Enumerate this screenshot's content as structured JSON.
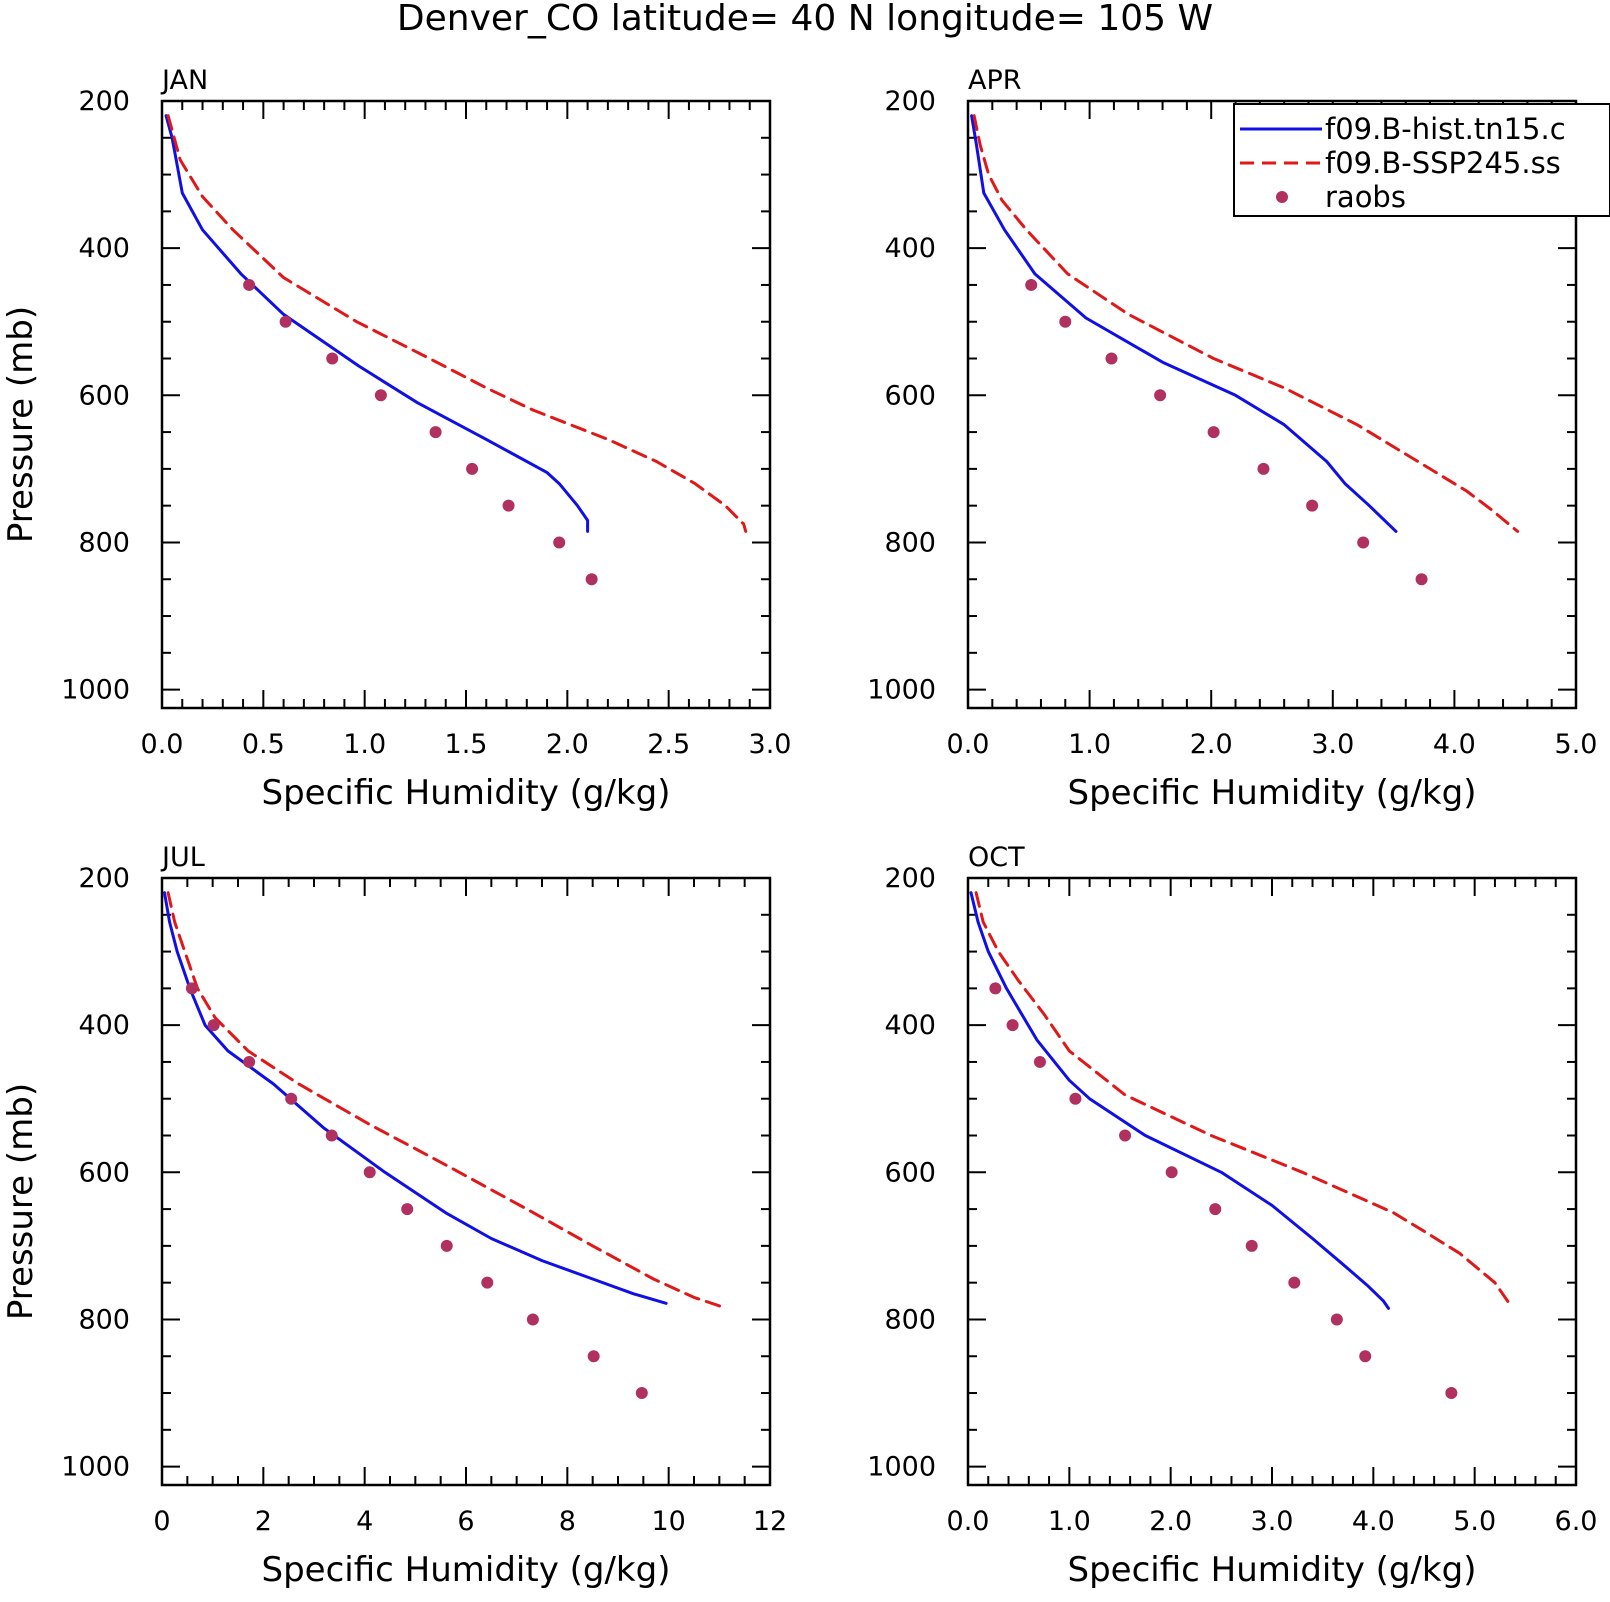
{
  "title": "Denver_CO  latitude= 40 N longitude= 105 W",
  "colors": {
    "hist": "#1010e6",
    "ssp": "#e01818",
    "raobs": "#b03060",
    "axis": "#000000"
  },
  "legend": {
    "placement": "top-right of APR panel",
    "entries": [
      {
        "label": "f09.B-hist.tn15.c",
        "style": "solid",
        "color": "#1010e6"
      },
      {
        "label": "f09.B-SSP245.ss",
        "style": "dashed",
        "color": "#e01818"
      },
      {
        "label": "raobs",
        "style": "dot",
        "color": "#b03060"
      }
    ]
  },
  "chart_data": [
    {
      "type": "line",
      "panel": "JAN",
      "xlabel": "Specific Humidity (g/kg)",
      "ylabel": "Pressure (mb)",
      "xlim": [
        0,
        3
      ],
      "ylim": [
        200,
        1025
      ],
      "y_inverted": true,
      "xticks": [
        0,
        0.5,
        1,
        1.5,
        2,
        2.5,
        3
      ],
      "xtick_labels": [
        "0.0",
        "0.5",
        "1.0",
        "1.5",
        "2.0",
        "2.5",
        "3.0"
      ],
      "xminor": 0.1,
      "yticks": [
        200,
        400,
        600,
        800,
        1000
      ],
      "yminor": 50,
      "series": [
        {
          "key": "hist",
          "points": [
            [
              0.02,
              220
            ],
            [
              0.05,
              250
            ],
            [
              0.07,
              280
            ],
            [
              0.1,
              325
            ],
            [
              0.2,
              375
            ],
            [
              0.39,
              435
            ],
            [
              0.6,
              490
            ],
            [
              0.97,
              560
            ],
            [
              1.26,
              610
            ],
            [
              1.6,
              660
            ],
            [
              1.9,
              705
            ],
            [
              1.96,
              720
            ],
            [
              2.05,
              750
            ],
            [
              2.1,
              770
            ],
            [
              2.1,
              785
            ]
          ]
        },
        {
          "key": "ssp",
          "points": [
            [
              0.03,
              220
            ],
            [
              0.06,
              250
            ],
            [
              0.09,
              280
            ],
            [
              0.2,
              330
            ],
            [
              0.35,
              375
            ],
            [
              0.6,
              440
            ],
            [
              0.96,
              500
            ],
            [
              1.32,
              550
            ],
            [
              1.6,
              590
            ],
            [
              1.83,
              620
            ],
            [
              2.2,
              660
            ],
            [
              2.44,
              690
            ],
            [
              2.63,
              720
            ],
            [
              2.78,
              750
            ],
            [
              2.87,
              775
            ],
            [
              2.88,
              785
            ]
          ]
        },
        {
          "key": "raobs",
          "points": [
            [
              0.43,
              450
            ],
            [
              0.61,
              500
            ],
            [
              0.84,
              550
            ],
            [
              1.08,
              600
            ],
            [
              1.35,
              650
            ],
            [
              1.53,
              700
            ],
            [
              1.71,
              750
            ],
            [
              1.96,
              800
            ],
            [
              2.12,
              850
            ]
          ]
        }
      ]
    },
    {
      "type": "line",
      "panel": "APR",
      "xlabel": "Specific Humidity (g/kg)",
      "ylabel": "",
      "xlim": [
        0,
        5
      ],
      "ylim": [
        200,
        1025
      ],
      "y_inverted": true,
      "xticks": [
        0,
        1,
        2,
        3,
        4,
        5
      ],
      "xtick_labels": [
        "0.0",
        "1.0",
        "2.0",
        "3.0",
        "4.0",
        "5.0"
      ],
      "xminor": 0.2,
      "yticks": [
        200,
        400,
        600,
        800,
        1000
      ],
      "yminor": 50,
      "series": [
        {
          "key": "hist",
          "points": [
            [
              0.03,
              220
            ],
            [
              0.07,
              260
            ],
            [
              0.13,
              325
            ],
            [
              0.3,
              375
            ],
            [
              0.55,
              435
            ],
            [
              0.97,
              495
            ],
            [
              1.6,
              555
            ],
            [
              2.2,
              600
            ],
            [
              2.6,
              640
            ],
            [
              2.95,
              690
            ],
            [
              3.1,
              720
            ],
            [
              3.3,
              750
            ],
            [
              3.52,
              785
            ]
          ]
        },
        {
          "key": "ssp",
          "points": [
            [
              0.05,
              220
            ],
            [
              0.1,
              260
            ],
            [
              0.17,
              300
            ],
            [
              0.28,
              335
            ],
            [
              0.48,
              375
            ],
            [
              0.82,
              435
            ],
            [
              1.32,
              490
            ],
            [
              2.02,
              550
            ],
            [
              2.6,
              590
            ],
            [
              3.2,
              640
            ],
            [
              3.7,
              690
            ],
            [
              4.1,
              730
            ],
            [
              4.3,
              755
            ],
            [
              4.52,
              785
            ]
          ]
        },
        {
          "key": "raobs",
          "points": [
            [
              0.52,
              450
            ],
            [
              0.8,
              500
            ],
            [
              1.18,
              550
            ],
            [
              1.58,
              600
            ],
            [
              2.02,
              650
            ],
            [
              2.43,
              700
            ],
            [
              2.83,
              750
            ],
            [
              3.25,
              800
            ],
            [
              3.73,
              850
            ]
          ]
        }
      ]
    },
    {
      "type": "line",
      "panel": "JUL",
      "xlabel": "Specific Humidity (g/kg)",
      "ylabel": "Pressure (mb)",
      "xlim": [
        0,
        12
      ],
      "ylim": [
        200,
        1025
      ],
      "y_inverted": true,
      "xticks": [
        0,
        2,
        4,
        6,
        8,
        10,
        12
      ],
      "xtick_labels": [
        "0",
        "2",
        "4",
        "6",
        "8",
        "10",
        "12"
      ],
      "xminor": 0.5,
      "yticks": [
        200,
        400,
        600,
        800,
        1000
      ],
      "yminor": 50,
      "series": [
        {
          "key": "hist",
          "points": [
            [
              0.05,
              220
            ],
            [
              0.15,
              260
            ],
            [
              0.3,
              300
            ],
            [
              0.55,
              350
            ],
            [
              0.85,
              400
            ],
            [
              1.3,
              435
            ],
            [
              2.2,
              480
            ],
            [
              3.2,
              540
            ],
            [
              4.4,
              600
            ],
            [
              5.6,
              655
            ],
            [
              6.5,
              690
            ],
            [
              7.5,
              720
            ],
            [
              8.5,
              745
            ],
            [
              9.3,
              765
            ],
            [
              9.95,
              778
            ]
          ]
        },
        {
          "key": "ssp",
          "points": [
            [
              0.12,
              220
            ],
            [
              0.25,
              260
            ],
            [
              0.45,
              300
            ],
            [
              0.7,
              350
            ],
            [
              1.05,
              390
            ],
            [
              1.7,
              435
            ],
            [
              2.7,
              480
            ],
            [
              4.1,
              535
            ],
            [
              5.6,
              590
            ],
            [
              7.2,
              650
            ],
            [
              8.5,
              700
            ],
            [
              9.7,
              745
            ],
            [
              10.5,
              770
            ],
            [
              11.15,
              785
            ]
          ]
        },
        {
          "key": "raobs",
          "points": [
            [
              0.59,
              350
            ],
            [
              1.02,
              400
            ],
            [
              1.72,
              450
            ],
            [
              2.55,
              500
            ],
            [
              3.35,
              550
            ],
            [
              4.1,
              600
            ],
            [
              4.84,
              650
            ],
            [
              5.62,
              700
            ],
            [
              6.42,
              750
            ],
            [
              7.32,
              800
            ],
            [
              8.52,
              850
            ],
            [
              9.47,
              900
            ]
          ]
        }
      ]
    },
    {
      "type": "line",
      "panel": "OCT",
      "xlabel": "Specific Humidity (g/kg)",
      "ylabel": "",
      "xlim": [
        0,
        6
      ],
      "ylim": [
        200,
        1025
      ],
      "y_inverted": true,
      "xticks": [
        0,
        1,
        2,
        3,
        4,
        5,
        6
      ],
      "xtick_labels": [
        "0.0",
        "1.0",
        "2.0",
        "3.0",
        "4.0",
        "5.0",
        "6.0"
      ],
      "xminor": 0.2,
      "yticks": [
        200,
        400,
        600,
        800,
        1000
      ],
      "yminor": 50,
      "series": [
        {
          "key": "hist",
          "points": [
            [
              0.03,
              220
            ],
            [
              0.1,
              260
            ],
            [
              0.2,
              300
            ],
            [
              0.38,
              350
            ],
            [
              0.68,
              420
            ],
            [
              1.0,
              475
            ],
            [
              1.2,
              500
            ],
            [
              1.75,
              550
            ],
            [
              2.5,
              600
            ],
            [
              3.0,
              645
            ],
            [
              3.4,
              690
            ],
            [
              3.7,
              725
            ],
            [
              3.95,
              755
            ],
            [
              4.1,
              775
            ],
            [
              4.15,
              785
            ]
          ]
        },
        {
          "key": "ssp",
          "points": [
            [
              0.08,
              220
            ],
            [
              0.15,
              260
            ],
            [
              0.3,
              300
            ],
            [
              0.5,
              340
            ],
            [
              0.75,
              385
            ],
            [
              1.0,
              435
            ],
            [
              1.55,
              495
            ],
            [
              2.4,
              550
            ],
            [
              3.3,
              600
            ],
            [
              4.2,
              655
            ],
            [
              4.5,
              680
            ],
            [
              4.85,
              710
            ],
            [
              5.2,
              750
            ],
            [
              5.35,
              780
            ]
          ]
        },
        {
          "key": "raobs",
          "points": [
            [
              0.27,
              350
            ],
            [
              0.44,
              400
            ],
            [
              0.71,
              450
            ],
            [
              1.06,
              500
            ],
            [
              1.55,
              550
            ],
            [
              2.01,
              600
            ],
            [
              2.44,
              650
            ],
            [
              2.8,
              700
            ],
            [
              3.22,
              750
            ],
            [
              3.64,
              800
            ],
            [
              3.92,
              850
            ],
            [
              4.77,
              900
            ]
          ]
        }
      ]
    }
  ]
}
